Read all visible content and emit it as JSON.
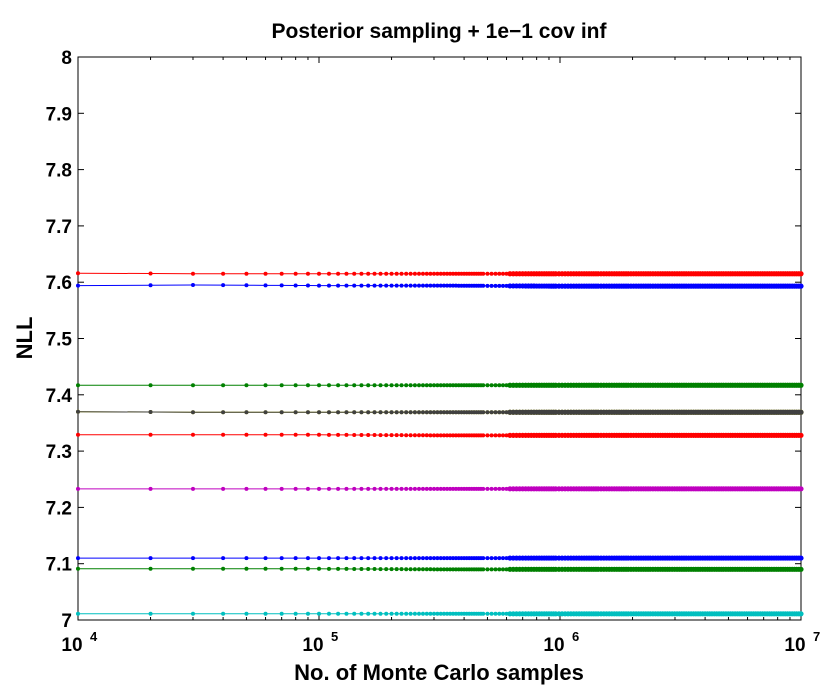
{
  "chart_data": {
    "type": "line",
    "title": "Posterior sampling + 1e−1 cov inf",
    "xlabel": "No. of Monte Carlo samples",
    "ylabel": "NLL",
    "xscale": "log",
    "xlim": [
      10000,
      10000000
    ],
    "ylim": [
      7.0,
      8.0
    ],
    "yticks": [
      "7",
      "7.1",
      "7.2",
      "7.3",
      "7.4",
      "7.5",
      "7.6",
      "7.7",
      "7.8",
      "7.9",
      "8"
    ],
    "yticks_values": [
      7.0,
      7.1,
      7.2,
      7.3,
      7.4,
      7.5,
      7.6,
      7.7,
      7.8,
      7.9,
      8.0
    ],
    "xticks": [
      {
        "value": 10000,
        "base": "10",
        "exp": "4"
      },
      {
        "value": 100000,
        "base": "10",
        "exp": "5"
      },
      {
        "value": 1000000,
        "base": "10",
        "exp": "6"
      },
      {
        "value": 10000000,
        "base": "10",
        "exp": "7"
      }
    ],
    "x": {
      "start": 10000,
      "step": 10000,
      "end": 10000000
    },
    "grid": false,
    "legend": "none",
    "marker": "dot",
    "series": [
      {
        "color": "#ff0000",
        "values": [
          7.616,
          7.615,
          7.615,
          7.615,
          7.615,
          7.615
        ]
      },
      {
        "color": "#0000ff",
        "values": [
          7.594,
          7.595,
          7.594,
          7.594,
          7.593,
          7.593
        ]
      },
      {
        "color": "#008000",
        "values": [
          7.417,
          7.417,
          7.417,
          7.417,
          7.417,
          7.417
        ]
      },
      {
        "color": "#bfbf00",
        "values": [
          7.37,
          7.369,
          7.369,
          7.369,
          7.369,
          7.369
        ]
      },
      {
        "color": "#404040",
        "values": [
          7.37,
          7.369,
          7.369,
          7.369,
          7.369,
          7.369
        ]
      },
      {
        "color": "#ff0000",
        "values": [
          7.329,
          7.329,
          7.329,
          7.328,
          7.328,
          7.328
        ]
      },
      {
        "color": "#bf00bf",
        "values": [
          7.233,
          7.233,
          7.233,
          7.233,
          7.233,
          7.233
        ]
      },
      {
        "color": "#0000ff",
        "values": [
          7.11,
          7.11,
          7.11,
          7.11,
          7.11,
          7.11
        ]
      },
      {
        "color": "#008000",
        "values": [
          7.091,
          7.091,
          7.091,
          7.09,
          7.09,
          7.09
        ]
      },
      {
        "color": "#00bfbf",
        "values": [
          7.011,
          7.011,
          7.011,
          7.011,
          7.011,
          7.011
        ]
      }
    ],
    "series_x_anchors": [
      10000,
      30000,
      100000,
      300000,
      1000000,
      10000000
    ]
  }
}
